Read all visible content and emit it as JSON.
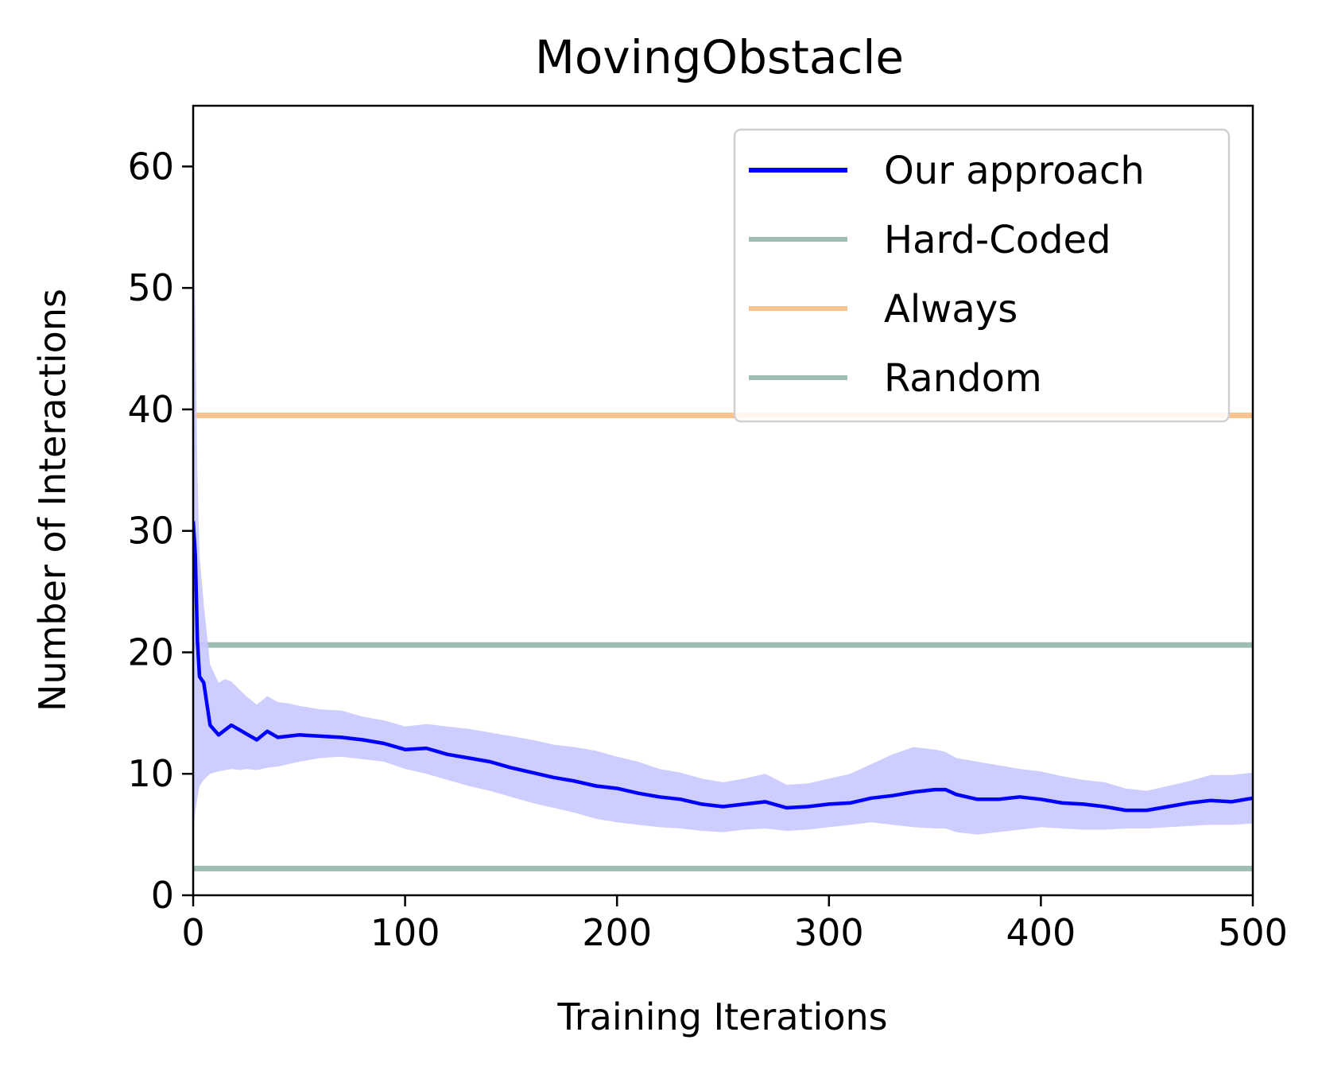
{
  "chart_data": {
    "type": "line",
    "title": "MovingObstacle",
    "xlabel": "Training Iterations",
    "ylabel": "Number of Interactions",
    "xlim": [
      0,
      500
    ],
    "ylim": [
      0,
      65
    ],
    "xticks": [
      0,
      100,
      200,
      300,
      400,
      500
    ],
    "yticks": [
      0,
      10,
      20,
      30,
      40,
      50,
      60
    ],
    "grid": false,
    "legend_position": "upper right",
    "series": [
      {
        "name": "Our approach",
        "color": "#0000ff",
        "style": "line with shaded band",
        "band_color": "#c8c8ff",
        "x": [
          0,
          1,
          2,
          3,
          5,
          8,
          12,
          15,
          18,
          22,
          25,
          30,
          35,
          40,
          45,
          50,
          60,
          70,
          80,
          90,
          100,
          110,
          120,
          130,
          140,
          150,
          160,
          170,
          180,
          190,
          200,
          210,
          220,
          230,
          240,
          250,
          260,
          270,
          280,
          290,
          300,
          310,
          320,
          330,
          340,
          350,
          355,
          360,
          370,
          380,
          390,
          400,
          410,
          420,
          430,
          440,
          450,
          460,
          470,
          480,
          490,
          500
        ],
        "y": [
          30.8,
          28.0,
          21.0,
          18.0,
          17.5,
          14.0,
          13.2,
          13.6,
          14.0,
          13.6,
          13.3,
          12.8,
          13.5,
          13.0,
          13.1,
          13.2,
          13.1,
          13.0,
          12.8,
          12.5,
          12.0,
          12.1,
          11.6,
          11.3,
          11.0,
          10.5,
          10.1,
          9.7,
          9.4,
          9.0,
          8.8,
          8.4,
          8.1,
          7.9,
          7.5,
          7.3,
          7.5,
          7.7,
          7.2,
          7.3,
          7.5,
          7.6,
          8.0,
          8.2,
          8.5,
          8.7,
          8.7,
          8.3,
          7.9,
          7.9,
          8.1,
          7.9,
          7.6,
          7.5,
          7.3,
          7.0,
          7.0,
          7.3,
          7.6,
          7.8,
          7.7,
          8.0
        ],
        "lower": [
          5.0,
          7.0,
          8.0,
          9.0,
          9.5,
          10.0,
          10.2,
          10.3,
          10.4,
          10.3,
          10.4,
          10.3,
          10.5,
          10.6,
          10.8,
          11.0,
          11.3,
          11.4,
          11.2,
          11.0,
          10.4,
          10.0,
          9.5,
          9.0,
          8.6,
          8.1,
          7.6,
          7.2,
          6.8,
          6.3,
          6.0,
          5.8,
          5.6,
          5.5,
          5.3,
          5.2,
          5.4,
          5.5,
          5.3,
          5.4,
          5.6,
          5.8,
          6.0,
          5.8,
          5.6,
          5.5,
          5.5,
          5.2,
          5.0,
          5.2,
          5.4,
          5.6,
          5.5,
          5.4,
          5.4,
          5.5,
          5.5,
          5.6,
          5.7,
          5.8,
          5.8,
          5.9
        ],
        "upper": [
          55.0,
          48.0,
          35.0,
          28.0,
          24.0,
          19.0,
          17.5,
          17.8,
          17.6,
          16.9,
          16.4,
          15.7,
          16.4,
          15.9,
          15.8,
          15.6,
          15.3,
          15.2,
          14.7,
          14.4,
          13.9,
          14.1,
          13.9,
          13.7,
          13.4,
          13.1,
          12.8,
          12.4,
          12.2,
          11.9,
          11.4,
          11.0,
          10.4,
          10.1,
          9.6,
          9.3,
          9.6,
          10.0,
          9.1,
          9.2,
          9.6,
          10.0,
          10.8,
          11.6,
          12.2,
          12.0,
          11.8,
          11.3,
          11.0,
          10.7,
          10.4,
          10.2,
          9.8,
          9.5,
          9.3,
          8.8,
          8.6,
          9.0,
          9.4,
          9.9,
          9.9,
          10.1
        ]
      },
      {
        "name": "Hard-Coded",
        "color": "#9fbdb5",
        "style": "horizontal line",
        "y": 20.6
      },
      {
        "name": "Always",
        "color": "#f8c391",
        "style": "horizontal line",
        "y": 39.5
      },
      {
        "name": "Random",
        "color": "#9fbdb5",
        "style": "horizontal line",
        "y": 2.2
      }
    ]
  }
}
